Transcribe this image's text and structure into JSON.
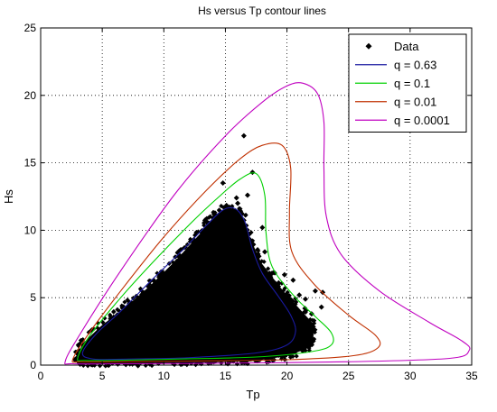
{
  "chart_data": {
    "type": "scatter",
    "title": "Hs versus Tp contour lines",
    "xlabel": "Tp",
    "ylabel": "Hs",
    "xlim": [
      0,
      35
    ],
    "ylim": [
      0,
      25
    ],
    "xticks": [
      0,
      5,
      10,
      15,
      20,
      25,
      30,
      35
    ],
    "yticks": [
      0,
      5,
      10,
      15,
      20,
      25
    ],
    "grid": true,
    "legend_position": "top-right",
    "scatter": {
      "name": "Data",
      "color": "#000000",
      "marker": "diamond",
      "outline": [
        [
          3.0,
          0.3
        ],
        [
          3.5,
          1.5
        ],
        [
          5,
          2.8
        ],
        [
          7,
          4.2
        ],
        [
          9,
          5.8
        ],
        [
          11,
          7.6
        ],
        [
          13,
          9.6
        ],
        [
          14.2,
          11.0
        ],
        [
          15.2,
          11.6
        ],
        [
          16.2,
          11.2
        ],
        [
          16.8,
          9.5
        ],
        [
          17.8,
          7.5
        ],
        [
          19.5,
          5.5
        ],
        [
          21,
          4.0
        ],
        [
          22,
          3.0
        ],
        [
          22,
          1.5
        ],
        [
          20,
          0.8
        ],
        [
          17,
          0.4
        ],
        [
          12,
          0.3
        ],
        [
          7,
          0.25
        ],
        [
          4,
          0.2
        ]
      ],
      "outliers": [
        [
          16.5,
          17.0
        ],
        [
          17.2,
          14.3
        ],
        [
          16.8,
          12.6
        ],
        [
          16.0,
          12.0
        ],
        [
          18.0,
          10.2
        ],
        [
          18.2,
          8.4
        ],
        [
          19.8,
          6.7
        ],
        [
          20.5,
          6.3
        ],
        [
          21.0,
          5.2
        ],
        [
          21.5,
          4.9
        ],
        [
          22.3,
          5.5
        ],
        [
          22.9,
          5.4
        ],
        [
          22.8,
          4.3
        ],
        [
          22.0,
          3.8
        ],
        [
          21.2,
          3.1
        ],
        [
          20.3,
          2.9
        ],
        [
          14.8,
          13.5
        ],
        [
          15.9,
          12.4
        ]
      ]
    },
    "series": [
      {
        "name": "q = 0.63",
        "color": "#1a1aa0",
        "points": [
          [
            3.4,
            0.9
          ],
          [
            4.5,
            2.3
          ],
          [
            6.5,
            4.0
          ],
          [
            9,
            6.3
          ],
          [
            11.5,
            8.5
          ],
          [
            13.5,
            10.4
          ],
          [
            14.8,
            11.5
          ],
          [
            15.8,
            11.6
          ],
          [
            16.6,
            10.6
          ],
          [
            17.2,
            8.6
          ],
          [
            18.0,
            6.8
          ],
          [
            19.3,
            5.1
          ],
          [
            20.3,
            3.7
          ],
          [
            20.7,
            2.5
          ],
          [
            20.0,
            1.5
          ],
          [
            17.5,
            0.9
          ],
          [
            12,
            0.55
          ],
          [
            7,
            0.45
          ],
          [
            4.3,
            0.45
          ],
          [
            3.4,
            0.9
          ]
        ]
      },
      {
        "name": "q = 0.1",
        "color": "#00d000",
        "points": [
          [
            3.0,
            0.5
          ],
          [
            4.0,
            2.2
          ],
          [
            6.5,
            5.0
          ],
          [
            9.5,
            8.0
          ],
          [
            12.5,
            10.8
          ],
          [
            14.5,
            12.5
          ],
          [
            16.2,
            13.8
          ],
          [
            17.5,
            14.2
          ],
          [
            18.2,
            12.6
          ],
          [
            18.3,
            9.8
          ],
          [
            18.8,
            7.3
          ],
          [
            20.6,
            5.1
          ],
          [
            22.3,
            3.6
          ],
          [
            23.6,
            2.4
          ],
          [
            23.6,
            1.5
          ],
          [
            22.0,
            1.0
          ],
          [
            17.5,
            0.6
          ],
          [
            11,
            0.45
          ],
          [
            6,
            0.35
          ],
          [
            3.6,
            0.35
          ],
          [
            3.0,
            0.5
          ]
        ]
      },
      {
        "name": "q = 0.01",
        "color": "#c03000",
        "points": [
          [
            2.6,
            0.4
          ],
          [
            3.8,
            2.2
          ],
          [
            6.5,
            5.5
          ],
          [
            10,
            9.5
          ],
          [
            13.5,
            13.0
          ],
          [
            16.2,
            15.3
          ],
          [
            18.0,
            16.3
          ],
          [
            19.6,
            16.3
          ],
          [
            20.3,
            14.6
          ],
          [
            20.2,
            11.3
          ],
          [
            20.4,
            8.4
          ],
          [
            22.2,
            6.0
          ],
          [
            25.0,
            3.7
          ],
          [
            27.2,
            2.2
          ],
          [
            27.4,
            1.3
          ],
          [
            25.4,
            0.7
          ],
          [
            20,
            0.4
          ],
          [
            12,
            0.3
          ],
          [
            6,
            0.25
          ],
          [
            3.2,
            0.25
          ],
          [
            2.6,
            0.4
          ]
        ]
      },
      {
        "name": "q = 0.0001",
        "color": "#c000c0",
        "points": [
          [
            2.0,
            0.3
          ],
          [
            3.2,
            2.3
          ],
          [
            6.5,
            7.0
          ],
          [
            11,
            12.8
          ],
          [
            15.0,
            17.0
          ],
          [
            18.0,
            19.5
          ],
          [
            20.0,
            20.7
          ],
          [
            21.3,
            20.9
          ],
          [
            22.5,
            20.1
          ],
          [
            23.0,
            18.0
          ],
          [
            23.0,
            14.5
          ],
          [
            23.2,
            11.0
          ],
          [
            24.4,
            8.2
          ],
          [
            27.5,
            5.5
          ],
          [
            31.5,
            3.2
          ],
          [
            34.2,
            1.8
          ],
          [
            34.8,
            1.1
          ],
          [
            33.2,
            0.5
          ],
          [
            25,
            0.25
          ],
          [
            15,
            0.15
          ],
          [
            6,
            0.1
          ],
          [
            2.6,
            0.1
          ],
          [
            2.0,
            0.3
          ]
        ]
      }
    ]
  }
}
